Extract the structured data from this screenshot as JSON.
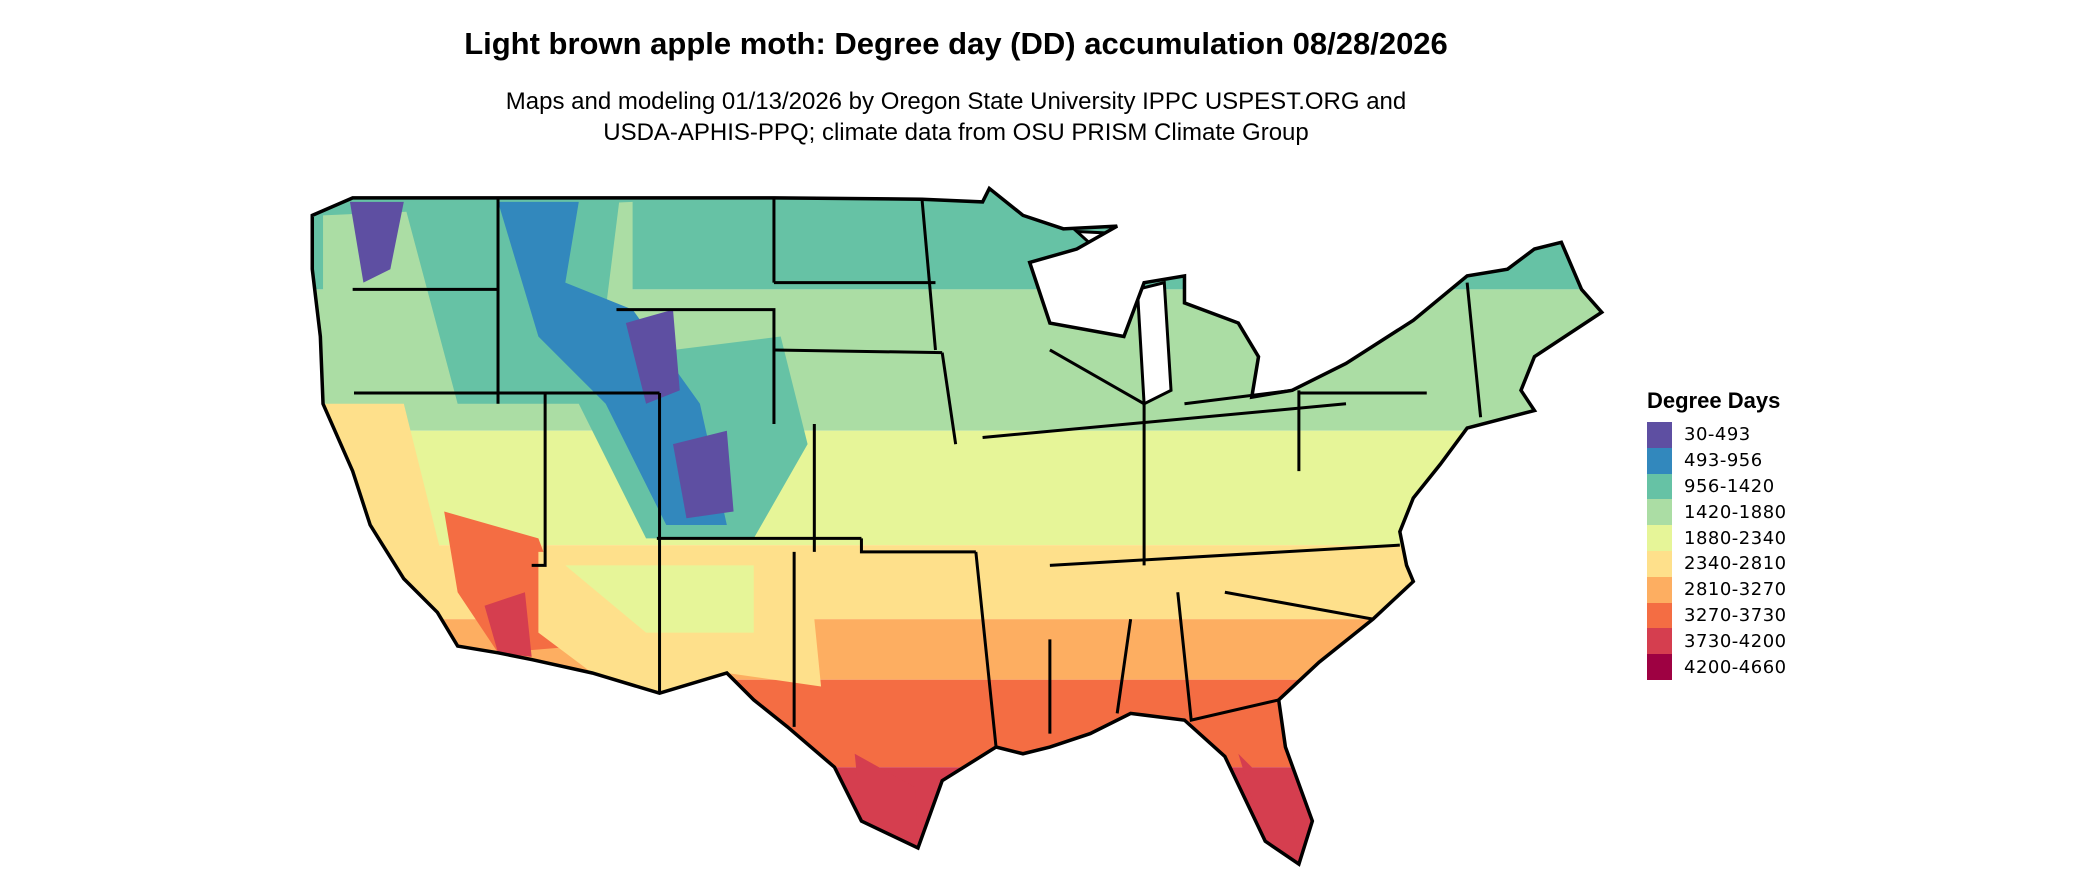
{
  "title": "Light brown apple moth: Degree day (DD) accumulation 08/28/2026",
  "subtitle_line1": "Maps and modeling 01/13/2026 by Oregon State University IPPC USPEST.ORG and",
  "subtitle_line2": "USDA-APHIS-PPQ; climate data from OSU PRISM Climate Group",
  "legend": {
    "title": "Degree Days",
    "items": [
      {
        "label": "30-493",
        "color": "#5E4FA2"
      },
      {
        "label": "493-956",
        "color": "#3288BD"
      },
      {
        "label": "956-1420",
        "color": "#66C2A5"
      },
      {
        "label": "1420-1880",
        "color": "#ABDDA4"
      },
      {
        "label": "1880-2340",
        "color": "#E6F598"
      },
      {
        "label": "2340-2810",
        "color": "#FEE08B"
      },
      {
        "label": "2810-3270",
        "color": "#FDAE61"
      },
      {
        "label": "3270-3730",
        "color": "#F46D43"
      },
      {
        "label": "3730-4200",
        "color": "#D53E4F"
      },
      {
        "label": "4200-4660",
        "color": "#9E0142"
      }
    ]
  },
  "map": {
    "region": "contiguous United States",
    "border_color": "#000000"
  }
}
